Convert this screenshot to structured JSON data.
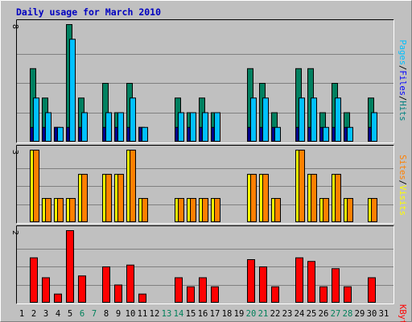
{
  "chart_data": {
    "type": "bar",
    "title": "Daily usage for March 2010",
    "days": [
      1,
      2,
      3,
      4,
      5,
      6,
      7,
      8,
      9,
      10,
      11,
      12,
      13,
      14,
      15,
      16,
      17,
      18,
      19,
      20,
      21,
      22,
      23,
      24,
      25,
      26,
      27,
      28,
      29,
      30,
      31
    ],
    "weekend_days": [
      6,
      7,
      13,
      14,
      20,
      21,
      27,
      28
    ],
    "panels": [
      {
        "id": "hits_files_pages",
        "ymax": 8,
        "ymax_label": "8",
        "legend": [
          {
            "label": "Pages",
            "color": "#00c0ff"
          },
          {
            "sep": "/"
          },
          {
            "label": "Files",
            "color": "#0000ff"
          },
          {
            "sep": "/"
          },
          {
            "label": "Hits",
            "color": "#008080"
          }
        ],
        "series": [
          {
            "name": "Hits",
            "color": "#008060",
            "values": [
              0,
              5,
              3,
              1,
              8,
              3,
              0,
              4,
              2,
              4,
              1,
              0,
              0,
              3,
              2,
              3,
              2,
              0,
              0,
              5,
              4,
              2,
              0,
              5,
              5,
              2,
              4,
              2,
              0,
              3,
              0
            ]
          },
          {
            "name": "Files",
            "color": "#00008b",
            "values": [
              0,
              1,
              1,
              1,
              1,
              1,
              0,
              1,
              1,
              1,
              1,
              0,
              0,
              1,
              1,
              1,
              1,
              0,
              0,
              1,
              1,
              1,
              0,
              1,
              1,
              1,
              1,
              1,
              0,
              1,
              0
            ]
          },
          {
            "name": "Pages",
            "color": "#00c0ff",
            "values": [
              0,
              3,
              2,
              1,
              7,
              2,
              0,
              2,
              2,
              3,
              1,
              0,
              0,
              2,
              2,
              2,
              2,
              0,
              0,
              3,
              3,
              1,
              0,
              3,
              3,
              1,
              3,
              1,
              0,
              2,
              0
            ]
          }
        ]
      },
      {
        "id": "visits_sites",
        "ymax": 3,
        "ymax_label": "3",
        "legend": [
          {
            "label": "Sites",
            "color": "#ff8000"
          },
          {
            "sep": "/"
          },
          {
            "label": "Visits",
            "color": "#ffff00"
          }
        ],
        "series": [
          {
            "name": "Visits",
            "color": "#ffff00",
            "values": [
              0,
              3,
              1,
              1,
              1,
              2,
              0,
              2,
              2,
              3,
              1,
              0,
              0,
              1,
              1,
              1,
              1,
              0,
              0,
              2,
              2,
              1,
              0,
              3,
              2,
              1,
              2,
              1,
              0,
              1,
              0
            ]
          },
          {
            "name": "Sites",
            "color": "#ff8000",
            "values": [
              0,
              3,
              1,
              1,
              1,
              2,
              0,
              2,
              2,
              3,
              1,
              0,
              0,
              1,
              1,
              1,
              1,
              0,
              0,
              2,
              2,
              1,
              0,
              3,
              2,
              1,
              2,
              1,
              0,
              1,
              0
            ]
          }
        ]
      },
      {
        "id": "kbytes",
        "ymax": 2,
        "ymax_label": "2",
        "legend": [
          {
            "label": "KBytes",
            "color": "#ff0000"
          }
        ],
        "series": [
          {
            "name": "KBytes",
            "color": "#ff0000",
            "values": [
              0,
              1.25,
              0.7,
              0.25,
              2.0,
              0.75,
              0,
              1.0,
              0.5,
              1.05,
              0.25,
              0,
              0,
              0.7,
              0.45,
              0.7,
              0.45,
              0,
              0,
              1.2,
              1.0,
              0.45,
              0,
              1.25,
              1.15,
              0.45,
              0.95,
              0.45,
              0,
              0.7,
              0
            ]
          }
        ]
      }
    ]
  }
}
